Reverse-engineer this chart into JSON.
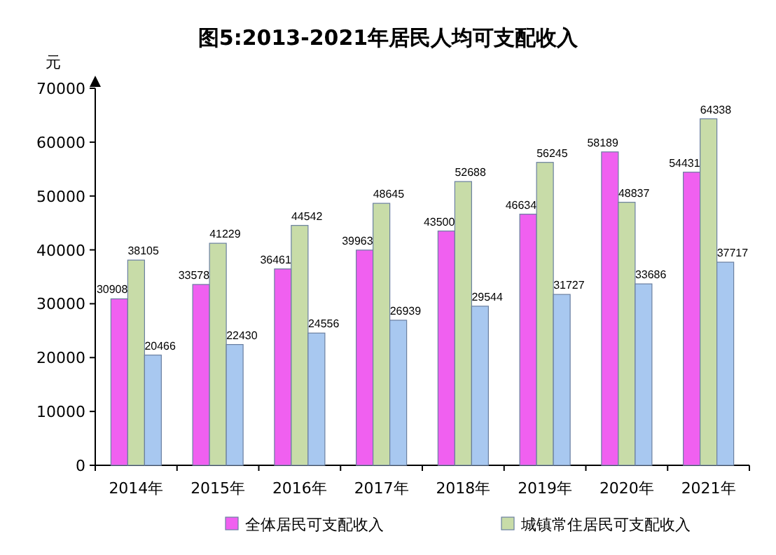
{
  "chart_data": {
    "type": "bar",
    "title": "图5:2013-2021年居民人均可支配收入",
    "ylabel": "元",
    "categories": [
      "2014年",
      "2015年",
      "2016年",
      "2017年",
      "2018年",
      "2019年",
      "2020年",
      "2021年"
    ],
    "series": [
      {
        "name": "全体居民可支配收入",
        "color": "#f060f0",
        "values": [
          30908,
          33578,
          36461,
          39963,
          43500,
          46634,
          58189,
          54431
        ]
      },
      {
        "name": "城镇常住居民可支配收入",
        "color": "#c8dca8",
        "values": [
          38105,
          41229,
          44542,
          48645,
          52688,
          56245,
          48837,
          64338
        ]
      },
      {
        "color": "#a8c8f0",
        "values": [
          20466,
          22430,
          24556,
          26939,
          29544,
          31727,
          33686,
          37717
        ]
      }
    ],
    "ylim": [
      0,
      70000
    ],
    "yticks": [
      0,
      10000,
      20000,
      30000,
      40000,
      50000,
      60000,
      70000
    ],
    "data_labels": true,
    "legend": "bottom",
    "grid": false
  }
}
